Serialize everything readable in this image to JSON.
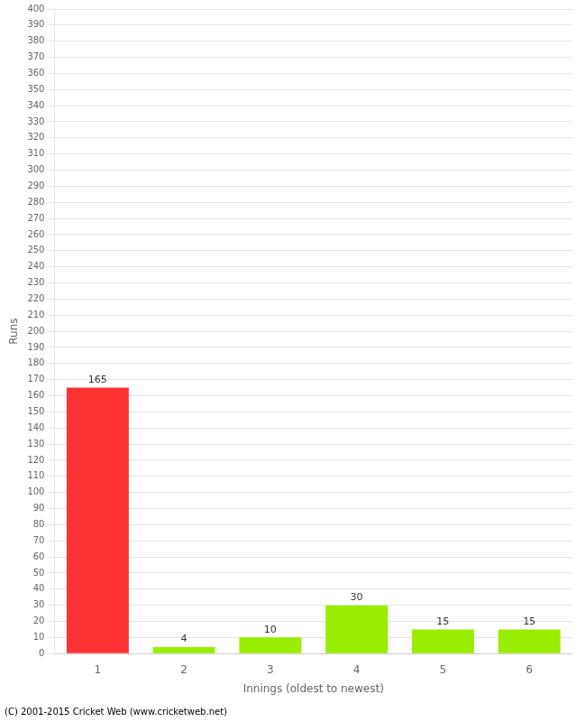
{
  "chart_data": {
    "type": "bar",
    "categories": [
      "1",
      "2",
      "3",
      "4",
      "5",
      "6"
    ],
    "values": [
      165,
      4,
      10,
      30,
      15,
      15
    ],
    "colors": [
      "#ff3333",
      "#99ee00",
      "#99ee00",
      "#99ee00",
      "#99ee00",
      "#99ee00"
    ],
    "xlabel": "Innings (oldest to newest)",
    "ylabel": "Runs",
    "ylim": [
      0,
      400
    ],
    "yticks": [
      0,
      10,
      20,
      30,
      40,
      50,
      60,
      70,
      80,
      90,
      100,
      110,
      120,
      130,
      140,
      150,
      160,
      170,
      180,
      190,
      200,
      210,
      220,
      230,
      240,
      250,
      260,
      270,
      280,
      290,
      300,
      310,
      320,
      330,
      340,
      350,
      360,
      370,
      380,
      390,
      400
    ],
    "grid": true,
    "data_labels": true,
    "annotations": [
      "(C) 2001-2015 Cricket Web (www.cricketweb.net)"
    ]
  }
}
